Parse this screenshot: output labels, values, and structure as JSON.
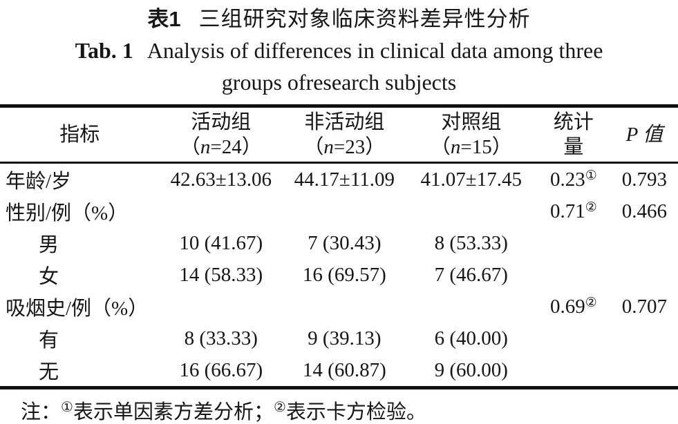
{
  "title": {
    "zh_label": "表1",
    "zh_text": "三组研究对象临床资料差异性分析",
    "en_label": "Tab. 1",
    "en_text_line1": "Analysis of differences in clinical data among three",
    "en_text_line2": "groups ofresearch subjects"
  },
  "table": {
    "header": {
      "indicator": "指标",
      "group1": {
        "name": "活动组",
        "n": "（n=24）"
      },
      "group2": {
        "name": "非活动组",
        "n": "（n=23）"
      },
      "group3": {
        "name": "对照组",
        "n": "（n=15）"
      },
      "statistic_line1": "统计",
      "statistic_line2": "量",
      "p": "P 值"
    },
    "rows": [
      {
        "label": "年龄/岁",
        "indent": false,
        "group1": "42.63±13.06",
        "group2": "44.17±11.09",
        "group3": "41.07±17.45",
        "statistic": "0.23",
        "statistic_sup": "①",
        "p": "0.793"
      },
      {
        "label": "性别/例（%）",
        "indent": false,
        "group1": "",
        "group2": "",
        "group3": "",
        "statistic": "0.71",
        "statistic_sup": "②",
        "p": "0.466"
      },
      {
        "label": "男",
        "indent": true,
        "group1": "10 (41.67)",
        "group2": "7 (30.43)",
        "group3": "8 (53.33)",
        "statistic": "",
        "statistic_sup": "",
        "p": ""
      },
      {
        "label": "女",
        "indent": true,
        "group1": "14 (58.33)",
        "group2": "16 (69.57)",
        "group3": "7 (46.67)",
        "statistic": "",
        "statistic_sup": "",
        "p": ""
      },
      {
        "label": "吸烟史/例（%）",
        "indent": false,
        "group1": "",
        "group2": "",
        "group3": "",
        "statistic": "0.69",
        "statistic_sup": "②",
        "p": "0.707"
      },
      {
        "label": "有",
        "indent": true,
        "group1": "8 (33.33)",
        "group2": "9 (39.13)",
        "group3": "6 (40.00)",
        "statistic": "",
        "statistic_sup": "",
        "p": ""
      },
      {
        "label": "无",
        "indent": true,
        "group1": "16 (66.67)",
        "group2": "14 (60.87)",
        "group3": "9 (60.00)",
        "statistic": "",
        "statistic_sup": "",
        "p": ""
      }
    ]
  },
  "note": {
    "prefix": "注：",
    "marker1": "①",
    "text1": "表示单因素方差分析；",
    "marker2": "②",
    "text2": "表示卡方检验。"
  },
  "colors": {
    "text": "#161616",
    "background": "#ffffff",
    "rule": "#111111"
  }
}
